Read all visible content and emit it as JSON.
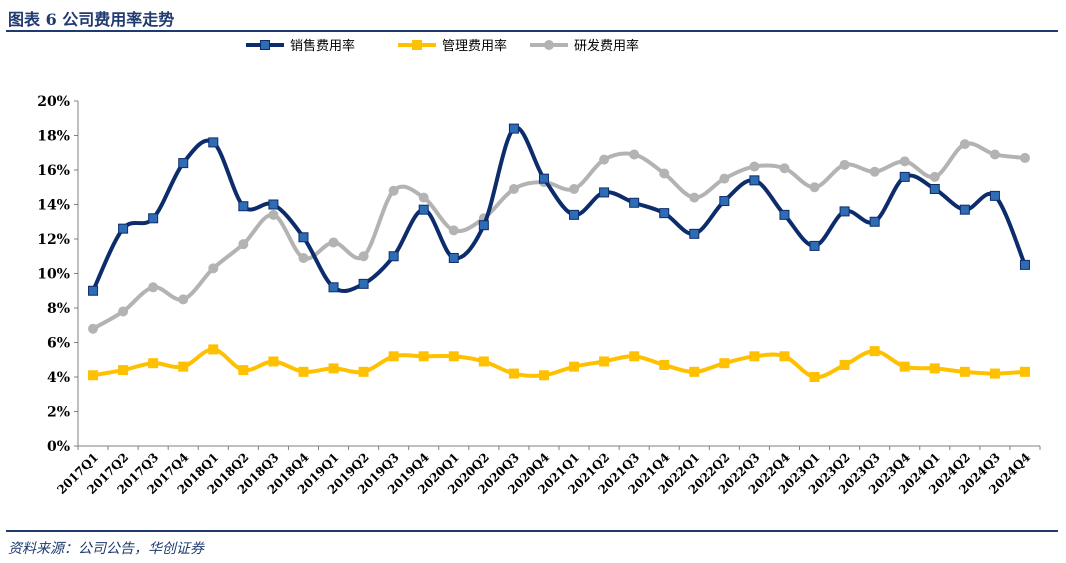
{
  "header": {
    "title": "图表 6  公司费用率走势"
  },
  "footer": {
    "source": "资料来源：公司公告，华创证券"
  },
  "colors": {
    "sales": "#0d2c6c",
    "admin": "#ffc000",
    "rd": "#b3b3b3",
    "rule": "#1f3a6e"
  },
  "chart_data": {
    "type": "line",
    "title": "",
    "xlabel": "",
    "ylabel": "",
    "ylim": [
      0,
      20
    ],
    "y_ticks": [
      "0%",
      "2%",
      "4%",
      "6%",
      "8%",
      "10%",
      "12%",
      "14%",
      "16%",
      "18%",
      "20%"
    ],
    "y_unit": "%",
    "legend_position": "top",
    "grid": false,
    "categories": [
      "2017Q1",
      "2017Q2",
      "2017Q3",
      "2017Q4",
      "2018Q1",
      "2018Q2",
      "2018Q3",
      "2018Q4",
      "2019Q1",
      "2019Q2",
      "2019Q3",
      "2019Q4",
      "2020Q1",
      "2020Q2",
      "2020Q3",
      "2020Q4",
      "2021Q1",
      "2021Q2",
      "2021Q3",
      "2021Q4",
      "2022Q1",
      "2022Q2",
      "2022Q3",
      "2022Q4",
      "2023Q1",
      "2023Q2",
      "2023Q3",
      "2023Q4",
      "2024Q1",
      "2024Q2",
      "2024Q3",
      "2024Q4"
    ],
    "series": [
      {
        "name": "销售费用率",
        "marker": "square",
        "values": [
          9.0,
          12.6,
          13.2,
          16.4,
          17.6,
          13.9,
          14.0,
          12.1,
          9.2,
          9.4,
          11.0,
          13.7,
          10.9,
          12.8,
          18.4,
          15.5,
          13.4,
          14.7,
          14.1,
          13.5,
          12.3,
          14.2,
          15.4,
          13.4,
          11.6,
          13.6,
          13.0,
          15.6,
          14.9,
          13.7,
          14.5,
          10.5
        ]
      },
      {
        "name": "管理费用率",
        "marker": "square",
        "values": [
          4.1,
          4.4,
          4.8,
          4.6,
          5.6,
          4.4,
          4.9,
          4.3,
          4.5,
          4.3,
          5.2,
          5.2,
          5.2,
          4.9,
          4.2,
          4.1,
          4.6,
          4.9,
          5.2,
          4.7,
          4.3,
          4.8,
          5.2,
          5.2,
          4.0,
          4.7,
          5.5,
          4.6,
          4.5,
          4.3,
          4.2,
          4.3
        ]
      },
      {
        "name": "研发费用率",
        "marker": "circle",
        "values": [
          6.8,
          7.8,
          9.2,
          8.5,
          10.3,
          11.7,
          13.4,
          10.9,
          11.8,
          11.0,
          14.8,
          14.4,
          12.5,
          13.2,
          14.9,
          15.3,
          14.9,
          16.6,
          16.9,
          15.8,
          14.4,
          15.5,
          16.2,
          16.1,
          15.0,
          16.3,
          15.9,
          16.5,
          15.6,
          17.5,
          16.9,
          16.7
        ]
      }
    ]
  }
}
